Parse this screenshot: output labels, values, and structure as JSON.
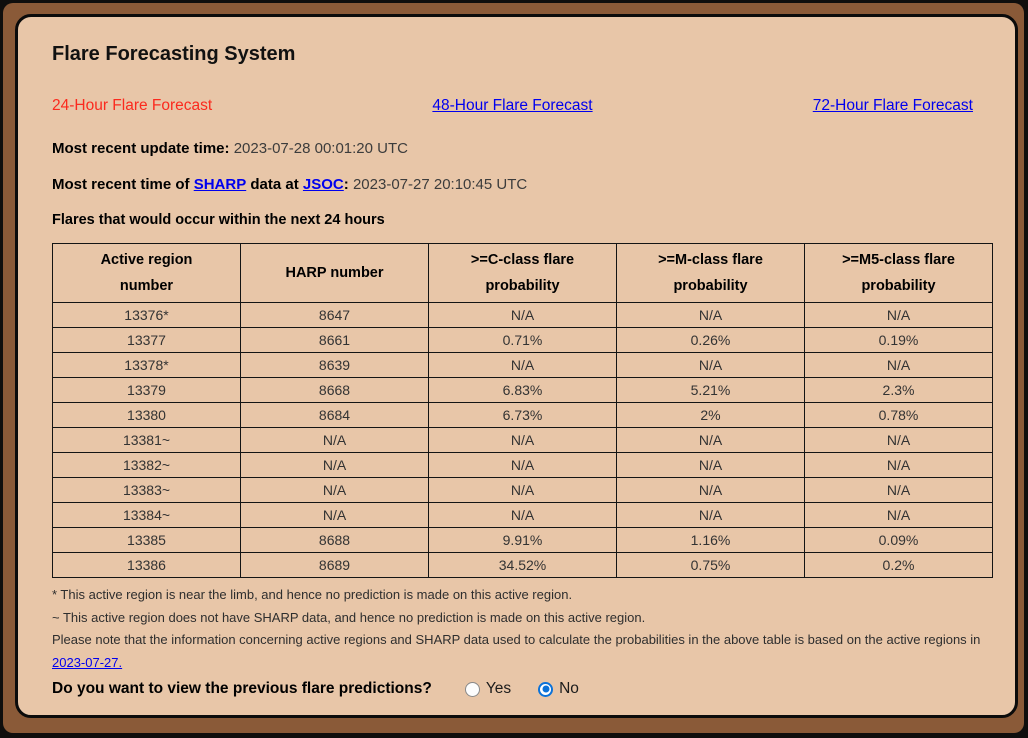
{
  "page": {
    "title": "Flare Forecasting System"
  },
  "nav": {
    "items": [
      {
        "label": "24-Hour Flare Forecast",
        "active": true
      },
      {
        "label": "48-Hour Flare Forecast",
        "active": false
      },
      {
        "label": "72-Hour Flare Forecast",
        "active": false
      }
    ]
  },
  "info": {
    "update_label": "Most recent update time:",
    "update_value": "2023-07-28 00:01:20 UTC",
    "sharp_prefix": "Most recent time of",
    "sharp_link": "SHARP",
    "sharp_middle": "data at",
    "jsoc_link": "JSOC",
    "sharp_colon": ":",
    "sharp_value": "2023-07-27 20:10:45 UTC",
    "table_caption": "Flares that would occur within the next 24 hours"
  },
  "table": {
    "headers": [
      "Active region number",
      "HARP number",
      ">=C-class flare probability",
      ">=M-class flare probability",
      ">=M5-class flare probability"
    ],
    "rows": [
      [
        "13376*",
        "8647",
        "N/A",
        "N/A",
        "N/A"
      ],
      [
        "13377",
        "8661",
        "0.71%",
        "0.26%",
        "0.19%"
      ],
      [
        "13378*",
        "8639",
        "N/A",
        "N/A",
        "N/A"
      ],
      [
        "13379",
        "8668",
        "6.83%",
        "5.21%",
        "2.3%"
      ],
      [
        "13380",
        "8684",
        "6.73%",
        "2%",
        "0.78%"
      ],
      [
        "13381~",
        "N/A",
        "N/A",
        "N/A",
        "N/A"
      ],
      [
        "13382~",
        "N/A",
        "N/A",
        "N/A",
        "N/A"
      ],
      [
        "13383~",
        "N/A",
        "N/A",
        "N/A",
        "N/A"
      ],
      [
        "13384~",
        "N/A",
        "N/A",
        "N/A",
        "N/A"
      ],
      [
        "13385",
        "8688",
        "9.91%",
        "1.16%",
        "0.09%"
      ],
      [
        "13386",
        "8689",
        "34.52%",
        "0.75%",
        "0.2%"
      ]
    ]
  },
  "footnotes": {
    "limb_note": "* This active region is near the limb, and hence no prediction is made on this active region.",
    "nosharp_note": "~ This active region does not have SHARP data, and hence no prediction is made on this active region.",
    "note_prefix": "Please note that the information concerning active regions and SHARP data used to calculate the probabilities in the above table is based on the active regions in",
    "note_link": "2023-07-27."
  },
  "question": {
    "label": "Do you want to view the previous flare predictions?",
    "options": [
      {
        "label": "Yes",
        "selected": false
      },
      {
        "label": "No",
        "selected": true
      }
    ],
    "selected_value": "No"
  },
  "colors": {
    "frame_brown": "#8a5a38",
    "panel_tan": "#e8c6a8",
    "active_red": "#fb2a1e",
    "link_blue": "#0000ee",
    "radio_blue": "#0b72d9",
    "border_black": "#0b0b0b"
  }
}
